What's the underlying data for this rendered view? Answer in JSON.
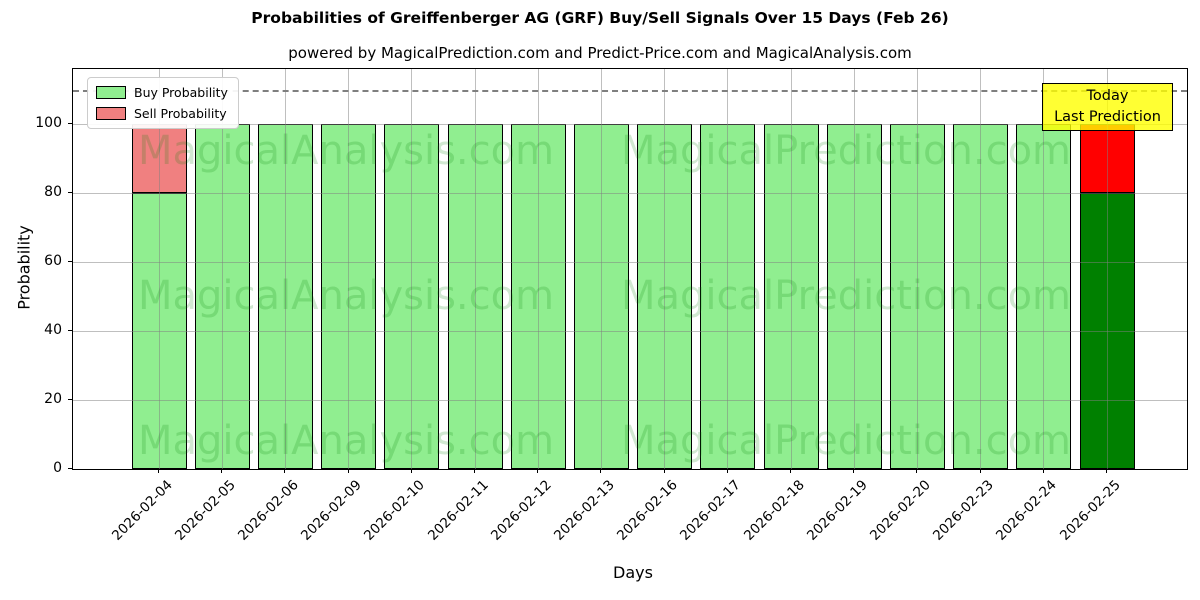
{
  "title": "Probabilities of Greiffenberger AG (GRF) Buy/Sell Signals Over 15 Days (Feb 26)",
  "subtitle": "powered by MagicalPrediction.com and Predict-Price.com and MagicalAnalysis.com",
  "chart_data": {
    "type": "bar",
    "stacked": true,
    "title": "Probabilities of Greiffenberger AG (GRF) Buy/Sell Signals Over 15 Days (Feb 26)",
    "xlabel": "Days",
    "ylabel": "Probability",
    "ylim": [
      0,
      116
    ],
    "yticks": [
      0,
      20,
      40,
      60,
      80,
      100
    ],
    "grid": true,
    "dashed_line_y": 110,
    "legend_position": "upper-left",
    "categories": [
      "2026-02-04",
      "2026-02-05",
      "2026-02-06",
      "2026-02-09",
      "2026-02-10",
      "2026-02-11",
      "2026-02-12",
      "2026-02-13",
      "2026-02-16",
      "2026-02-17",
      "2026-02-18",
      "2026-02-19",
      "2026-02-20",
      "2026-02-23",
      "2026-02-24",
      "2026-02-25"
    ],
    "series": [
      {
        "name": "Buy Probability",
        "values": [
          80,
          100,
          100,
          100,
          100,
          100,
          100,
          100,
          100,
          100,
          100,
          100,
          100,
          100,
          100,
          80
        ],
        "colors": [
          "#90EE90",
          "#90EE90",
          "#90EE90",
          "#90EE90",
          "#90EE90",
          "#90EE90",
          "#90EE90",
          "#90EE90",
          "#90EE90",
          "#90EE90",
          "#90EE90",
          "#90EE90",
          "#90EE90",
          "#90EE90",
          "#90EE90",
          "#008000"
        ]
      },
      {
        "name": "Sell Probability",
        "values": [
          20,
          0,
          0,
          0,
          0,
          0,
          0,
          0,
          0,
          0,
          0,
          0,
          0,
          0,
          0,
          20
        ],
        "colors": [
          "#F08080",
          "#F08080",
          "#F08080",
          "#F08080",
          "#F08080",
          "#F08080",
          "#F08080",
          "#F08080",
          "#F08080",
          "#F08080",
          "#F08080",
          "#F08080",
          "#F08080",
          "#F08080",
          "#F08080",
          "#FF0000"
        ]
      }
    ],
    "legend": {
      "entries": [
        {
          "label": "Buy Probability",
          "color": "#90EE90"
        },
        {
          "label": "Sell Probability",
          "color": "#F08080"
        }
      ]
    },
    "annotation": {
      "lines": [
        "Today",
        "Last Prediction"
      ],
      "bg": "#FFFF00"
    },
    "watermarks": [
      "MagicalAnalysis.com",
      "MagicalPrediction.com"
    ]
  },
  "colors": {
    "buy": "#90EE90",
    "sell": "#F08080",
    "buy_today": "#008000",
    "sell_today": "#FF0000",
    "annotation_bg": "#FFFF00",
    "grid": "#808080",
    "dashed_line": "#7f7f7f"
  }
}
